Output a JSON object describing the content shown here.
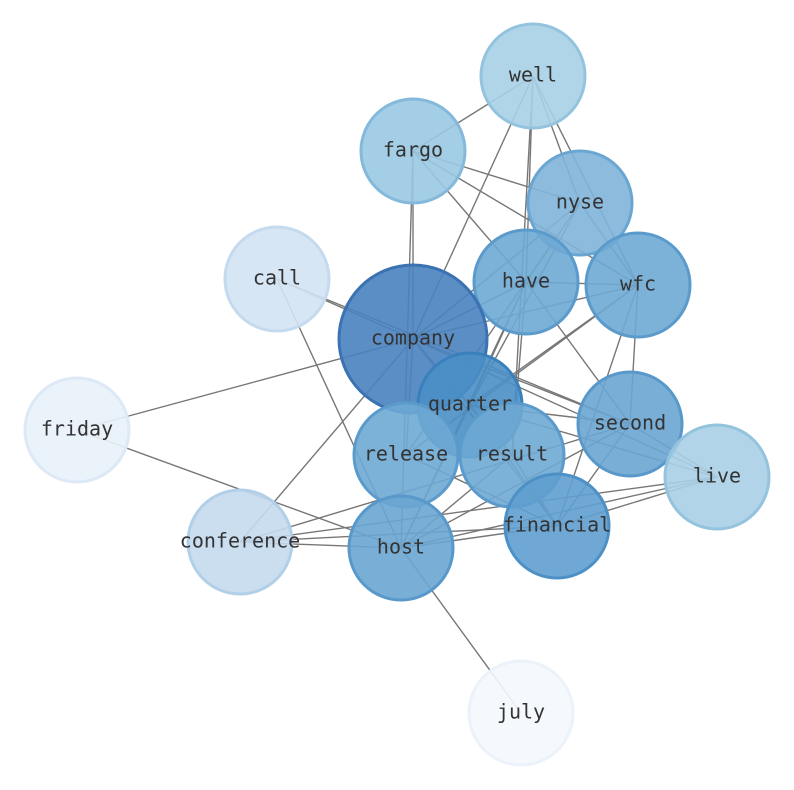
{
  "nodes": [
    {
      "label": "well"
    },
    {
      "label": "fargo"
    },
    {
      "label": "nyse"
    },
    {
      "label": "call"
    },
    {
      "label": "have"
    },
    {
      "label": "wfc"
    },
    {
      "label": "company"
    },
    {
      "label": "friday"
    },
    {
      "label": "quarter"
    },
    {
      "label": "second"
    },
    {
      "label": "release"
    },
    {
      "label": "result"
    },
    {
      "label": "live"
    },
    {
      "label": "conference"
    },
    {
      "label": "financial"
    },
    {
      "label": "host"
    },
    {
      "label": "july"
    }
  ]
}
